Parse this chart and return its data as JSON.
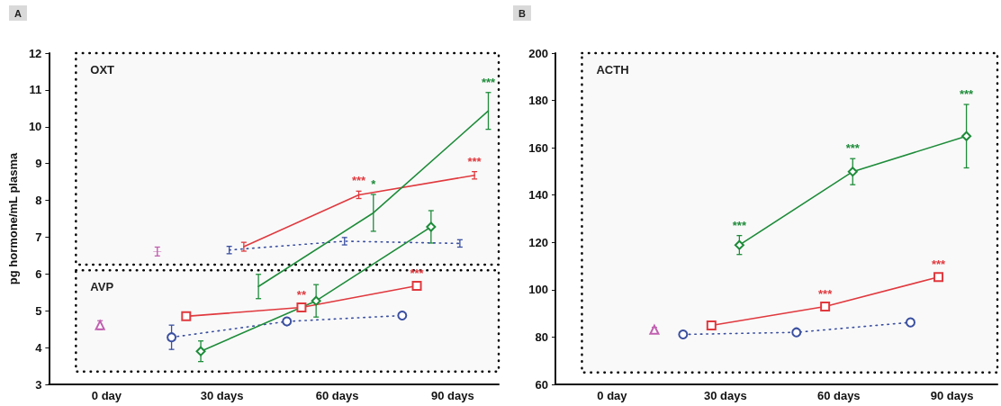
{
  "chart_data": [
    {
      "type": "line",
      "title": "A",
      "ylabel": "pg hormone/mL plasma",
      "xlim": [
        -15,
        102
      ],
      "xticks": [
        {
          "value": 0,
          "label": "0 day"
        },
        {
          "value": 30,
          "label": "30 days"
        },
        {
          "value": 60,
          "label": "60 days"
        },
        {
          "value": 90,
          "label": "90 days"
        }
      ],
      "ylim": [
        3,
        12
      ],
      "yticks": [
        3,
        4,
        5,
        6,
        7,
        8,
        9,
        10,
        11,
        12
      ],
      "grid": false,
      "bands": [
        {
          "axis": "y",
          "from": 6.25,
          "to": 12,
          "label": "OXT",
          "color": "#000000"
        },
        {
          "axis": "y",
          "from": 3.35,
          "to": 6.1,
          "label": "AVP",
          "color": "#000000"
        }
      ],
      "series": [
        {
          "color": "#c060b0",
          "x": [
            13.2
          ],
          "values": [
            6.61
          ],
          "errors": [
            0.12
          ],
          "marker": "cross",
          "line_style": "solid"
        },
        {
          "color": "#c060b0",
          "x": [
            -1.7
          ],
          "values": [
            4.61
          ],
          "errors": [
            0.12
          ],
          "marker": "triangle",
          "line_style": "solid"
        },
        {
          "color": "#3a4fa0",
          "x": [
            31.9,
            61.9,
            91.9
          ],
          "values": [
            6.65,
            6.89,
            6.83
          ],
          "errors": [
            0.1,
            0.1,
            0.1
          ],
          "marker": "none",
          "line_style": "dotted"
        },
        {
          "color": "#3a4fa0",
          "x": [
            16.9,
            46.9,
            76.9
          ],
          "values": [
            4.28,
            4.71,
            4.87
          ],
          "errors": [
            0.33,
            0.05,
            0.05
          ],
          "marker": "circle",
          "line_style": "dotted"
        },
        {
          "color": "#e0393e",
          "x": [
            35.7,
            65.6,
            95.7
          ],
          "values": [
            6.74,
            8.15,
            8.68
          ],
          "errors": [
            0.12,
            0.1,
            0.1
          ],
          "marker": "none",
          "line_style": "solid"
        },
        {
          "color": "#e0393e",
          "x": [
            20.7,
            50.7,
            80.7
          ],
          "values": [
            4.85,
            5.09,
            5.68
          ],
          "errors": [
            0.05,
            0.05,
            0.05
          ],
          "marker": "square",
          "line_style": "solid"
        },
        {
          "color": "#1e8c3a",
          "x": [
            39.5,
            69.4,
            99.3
          ],
          "values": [
            5.66,
            7.66,
            10.43
          ],
          "errors": [
            0.33,
            0.5,
            0.5
          ],
          "marker": "none",
          "line_style": "solid"
        },
        {
          "color": "#1e8c3a",
          "x": [
            24.5,
            54.5,
            84.4
          ],
          "values": [
            3.9,
            5.27,
            7.28
          ],
          "errors": [
            0.28,
            0.44,
            0.44
          ],
          "marker": "diamond",
          "line_style": "solid"
        }
      ],
      "annotations": [
        {
          "text": "***",
          "x": 99.3,
          "y": 10.43
        },
        {
          "text": "***",
          "x": 65.6,
          "y": 8.15
        },
        {
          "text": "*",
          "x": 69.4,
          "y": 7.66
        },
        {
          "text": "***",
          "x": 95.7,
          "y": 8.68
        },
        {
          "text": "**",
          "x": 50.7,
          "y": 5.09
        },
        {
          "text": "***",
          "x": 80.7,
          "y": 5.68
        }
      ]
    },
    {
      "type": "line",
      "title": "B",
      "xlim": [
        -15,
        102
      ],
      "xticks": [
        {
          "value": 0,
          "label": "0 day"
        },
        {
          "value": 30,
          "label": "30 days"
        },
        {
          "value": 60,
          "label": "60 days"
        },
        {
          "value": 90,
          "label": "90 days"
        }
      ],
      "ylim": [
        60,
        200
      ],
      "yticks": [
        60,
        80,
        100,
        120,
        140,
        160,
        180,
        200
      ],
      "grid": false,
      "bands": [
        {
          "axis": "y",
          "from": 65,
          "to": 200,
          "label": "ACTH",
          "color": "#000000"
        }
      ],
      "series": [
        {
          "color": "#c060b0",
          "x": [
            11.2
          ],
          "values": [
            83.1
          ],
          "errors": [
            1
          ],
          "marker": "triangle",
          "line_style": "solid"
        },
        {
          "color": "#3a4fa0",
          "x": [
            18.8,
            48.8,
            79.0
          ],
          "values": [
            81.1,
            82.0,
            86.2
          ],
          "errors": [
            1,
            1,
            1
          ],
          "marker": "circle",
          "line_style": "dotted"
        },
        {
          "color": "#e0393e",
          "x": [
            26.3,
            56.4,
            86.4
          ],
          "values": [
            84.9,
            92.9,
            105.4
          ],
          "errors": [
            1,
            1,
            1
          ],
          "marker": "square",
          "line_style": "solid"
        },
        {
          "color": "#1e8c3a",
          "x": [
            33.7,
            63.7,
            93.8
          ],
          "values": [
            118.9,
            149.9,
            164.9
          ],
          "errors": [
            4,
            5.5,
            13.4
          ],
          "marker": "diamond",
          "line_style": "solid"
        }
      ],
      "annotations": [
        {
          "text": "***",
          "x": 33.7,
          "y": 118.9
        },
        {
          "text": "***",
          "x": 63.7,
          "y": 149.9
        },
        {
          "text": "***",
          "x": 93.8,
          "y": 178.3
        },
        {
          "text": "***",
          "x": 56.4,
          "y": 92.9
        },
        {
          "text": "***",
          "x": 86.4,
          "y": 105.4
        }
      ]
    }
  ]
}
